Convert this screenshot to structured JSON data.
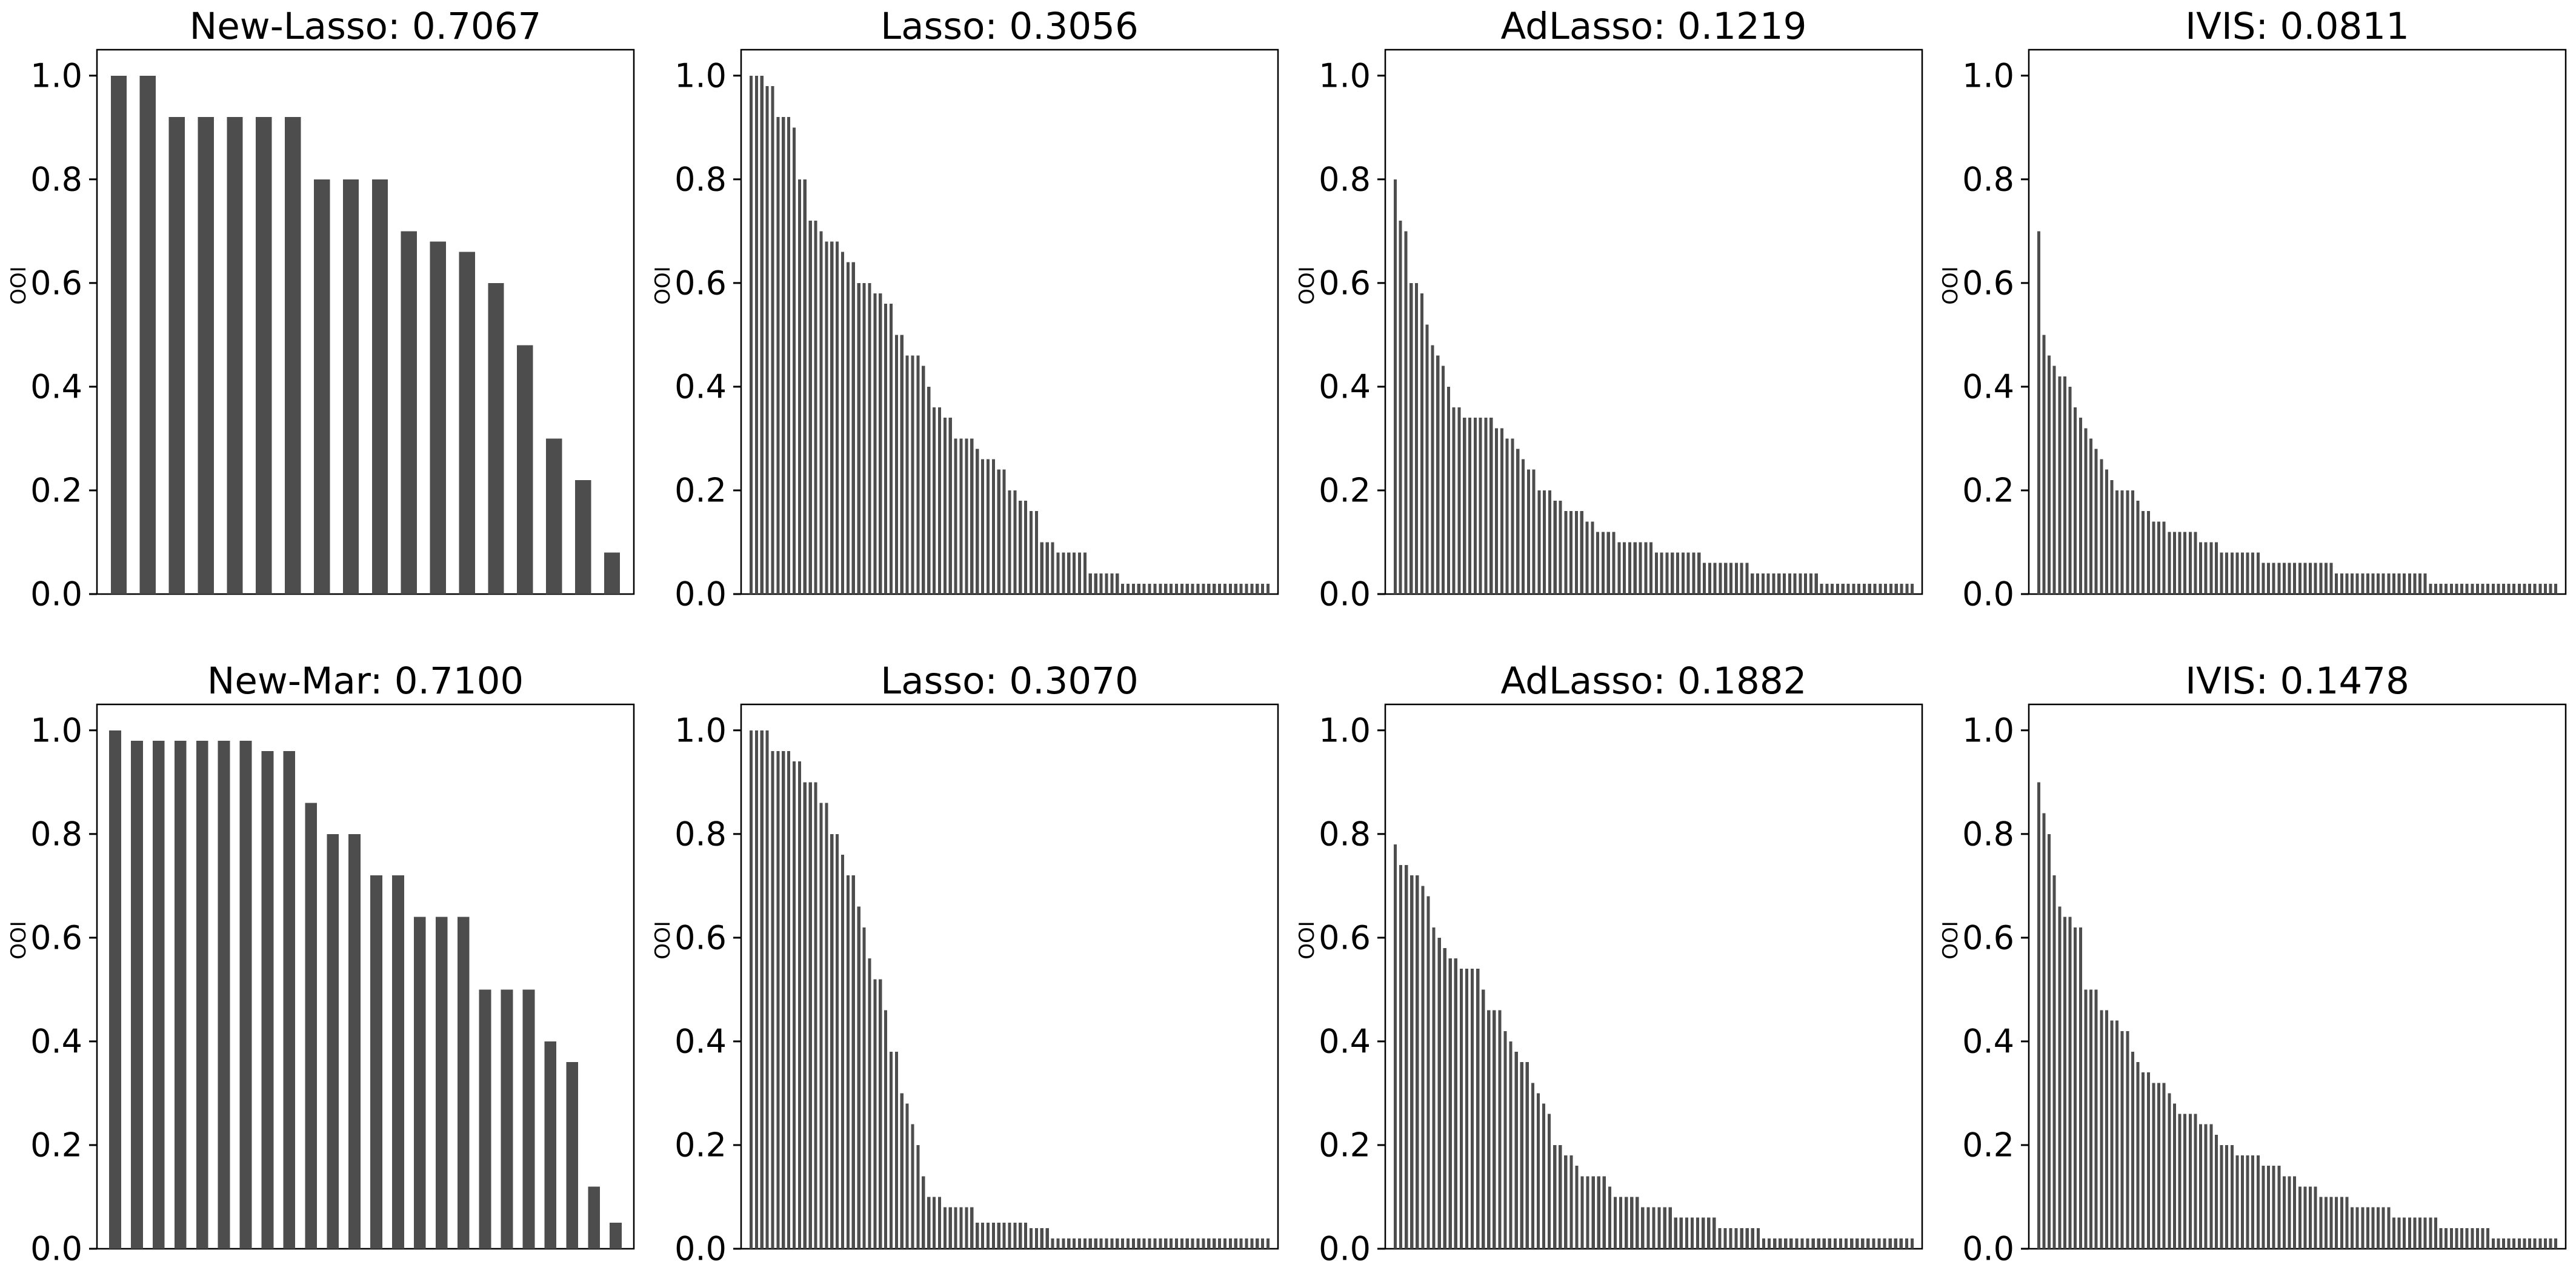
{
  "figure": {
    "background": "#ffffff",
    "bar_color": "#4d4d4d",
    "axis_color": "#000000",
    "ylabel": "OOI",
    "yticks": [
      "0.0",
      "0.2",
      "0.4",
      "0.6",
      "0.8",
      "1.0"
    ],
    "ytick_values": [
      0.0,
      0.2,
      0.4,
      0.6,
      0.8,
      1.0
    ],
    "ylim": [
      0,
      1.05
    ]
  },
  "chart_data": [
    {
      "type": "bar",
      "title": "New-Lasso: 0.7067",
      "method": "New-Lasso",
      "score": "0.7067",
      "ylabel": "OOI",
      "xlabel": "",
      "ylim": [
        0,
        1.05
      ],
      "grid": false,
      "values": [
        1.0,
        1.0,
        0.92,
        0.92,
        0.92,
        0.92,
        0.92,
        0.8,
        0.8,
        0.8,
        0.7,
        0.68,
        0.66,
        0.6,
        0.48,
        0.3,
        0.22,
        0.08
      ]
    },
    {
      "type": "bar",
      "title": "Lasso: 0.3056",
      "method": "Lasso",
      "score": "0.3056",
      "ylabel": "OOI",
      "xlabel": "",
      "ylim": [
        0,
        1.05
      ],
      "grid": false,
      "values": [
        1.0,
        1.0,
        1.0,
        0.98,
        0.98,
        0.92,
        0.92,
        0.92,
        0.9,
        0.8,
        0.8,
        0.72,
        0.72,
        0.7,
        0.68,
        0.68,
        0.68,
        0.66,
        0.64,
        0.64,
        0.6,
        0.6,
        0.6,
        0.58,
        0.58,
        0.56,
        0.56,
        0.5,
        0.5,
        0.46,
        0.46,
        0.46,
        0.44,
        0.4,
        0.36,
        0.36,
        0.34,
        0.34,
        0.3,
        0.3,
        0.3,
        0.3,
        0.28,
        0.26,
        0.26,
        0.26,
        0.24,
        0.24,
        0.2,
        0.2,
        0.18,
        0.18,
        0.16,
        0.16,
        0.1,
        0.1,
        0.1,
        0.08,
        0.08,
        0.08,
        0.08,
        0.08,
        0.08,
        0.04,
        0.04,
        0.04,
        0.04,
        0.04,
        0.04,
        0.02,
        0.02,
        0.02,
        0.02,
        0.02,
        0.02,
        0.02,
        0.02,
        0.02,
        0.02,
        0.02,
        0.02,
        0.02,
        0.02,
        0.02,
        0.02,
        0.02,
        0.02,
        0.02,
        0.02,
        0.02,
        0.02,
        0.02,
        0.02,
        0.02,
        0.02,
        0.02,
        0.02
      ]
    },
    {
      "type": "bar",
      "title": "AdLasso: 0.1219",
      "method": "AdLasso",
      "score": "0.1219",
      "ylabel": "OOI",
      "xlabel": "",
      "ylim": [
        0,
        1.05
      ],
      "grid": false,
      "values": [
        0.8,
        0.72,
        0.7,
        0.6,
        0.6,
        0.58,
        0.52,
        0.48,
        0.46,
        0.44,
        0.4,
        0.36,
        0.36,
        0.34,
        0.34,
        0.34,
        0.34,
        0.34,
        0.34,
        0.32,
        0.32,
        0.3,
        0.3,
        0.28,
        0.26,
        0.24,
        0.24,
        0.2,
        0.2,
        0.2,
        0.18,
        0.18,
        0.16,
        0.16,
        0.16,
        0.16,
        0.14,
        0.14,
        0.12,
        0.12,
        0.12,
        0.12,
        0.1,
        0.1,
        0.1,
        0.1,
        0.1,
        0.1,
        0.1,
        0.08,
        0.08,
        0.08,
        0.08,
        0.08,
        0.08,
        0.08,
        0.08,
        0.08,
        0.06,
        0.06,
        0.06,
        0.06,
        0.06,
        0.06,
        0.06,
        0.06,
        0.06,
        0.04,
        0.04,
        0.04,
        0.04,
        0.04,
        0.04,
        0.04,
        0.04,
        0.04,
        0.04,
        0.04,
        0.04,
        0.04,
        0.02,
        0.02,
        0.02,
        0.02,
        0.02,
        0.02,
        0.02,
        0.02,
        0.02,
        0.02,
        0.02,
        0.02,
        0.02,
        0.02,
        0.02,
        0.02,
        0.02,
        0.02
      ]
    },
    {
      "type": "bar",
      "title": "IVIS: 0.0811",
      "method": "IVIS",
      "score": "0.0811",
      "ylabel": "OOI",
      "xlabel": "",
      "ylim": [
        0,
        1.05
      ],
      "grid": false,
      "values": [
        0.7,
        0.5,
        0.46,
        0.44,
        0.42,
        0.42,
        0.4,
        0.36,
        0.34,
        0.32,
        0.3,
        0.28,
        0.26,
        0.24,
        0.22,
        0.2,
        0.2,
        0.2,
        0.2,
        0.18,
        0.16,
        0.16,
        0.14,
        0.14,
        0.14,
        0.12,
        0.12,
        0.12,
        0.12,
        0.12,
        0.12,
        0.1,
        0.1,
        0.1,
        0.1,
        0.08,
        0.08,
        0.08,
        0.08,
        0.08,
        0.08,
        0.08,
        0.08,
        0.06,
        0.06,
        0.06,
        0.06,
        0.06,
        0.06,
        0.06,
        0.06,
        0.06,
        0.06,
        0.06,
        0.06,
        0.06,
        0.06,
        0.04,
        0.04,
        0.04,
        0.04,
        0.04,
        0.04,
        0.04,
        0.04,
        0.04,
        0.04,
        0.04,
        0.04,
        0.04,
        0.04,
        0.04,
        0.04,
        0.04,
        0.04,
        0.02,
        0.02,
        0.02,
        0.02,
        0.02,
        0.02,
        0.02,
        0.02,
        0.02,
        0.02,
        0.02,
        0.02,
        0.02,
        0.02,
        0.02,
        0.02,
        0.02,
        0.02,
        0.02,
        0.02,
        0.02,
        0.02,
        0.02,
        0.02,
        0.02
      ]
    },
    {
      "type": "bar",
      "title": "New-Mar: 0.7100",
      "method": "New-Mar",
      "score": "0.7100",
      "ylabel": "OOI",
      "xlabel": "",
      "ylim": [
        0,
        1.05
      ],
      "grid": false,
      "values": [
        1.0,
        0.98,
        0.98,
        0.98,
        0.98,
        0.98,
        0.98,
        0.96,
        0.96,
        0.86,
        0.8,
        0.8,
        0.72,
        0.72,
        0.64,
        0.64,
        0.64,
        0.5,
        0.5,
        0.5,
        0.4,
        0.36,
        0.12,
        0.05
      ]
    },
    {
      "type": "bar",
      "title": "Lasso: 0.3070",
      "method": "Lasso",
      "score": "0.3070",
      "ylabel": "OOI",
      "xlabel": "",
      "ylim": [
        0,
        1.05
      ],
      "grid": false,
      "values": [
        1.0,
        1.0,
        1.0,
        1.0,
        0.96,
        0.96,
        0.96,
        0.96,
        0.94,
        0.94,
        0.9,
        0.9,
        0.9,
        0.86,
        0.86,
        0.8,
        0.8,
        0.76,
        0.72,
        0.72,
        0.66,
        0.62,
        0.56,
        0.52,
        0.52,
        0.46,
        0.38,
        0.38,
        0.3,
        0.28,
        0.24,
        0.2,
        0.14,
        0.1,
        0.1,
        0.1,
        0.08,
        0.08,
        0.08,
        0.08,
        0.08,
        0.08,
        0.05,
        0.05,
        0.05,
        0.05,
        0.05,
        0.05,
        0.05,
        0.05,
        0.05,
        0.05,
        0.04,
        0.04,
        0.04,
        0.04,
        0.02,
        0.02,
        0.02,
        0.02,
        0.02,
        0.02,
        0.02,
        0.02,
        0.02,
        0.02,
        0.02,
        0.02,
        0.02,
        0.02,
        0.02,
        0.02,
        0.02,
        0.02,
        0.02,
        0.02,
        0.02,
        0.02,
        0.02,
        0.02,
        0.02,
        0.02,
        0.02,
        0.02,
        0.02,
        0.02,
        0.02,
        0.02,
        0.02,
        0.02,
        0.02,
        0.02,
        0.02,
        0.02,
        0.02,
        0.02,
        0.02
      ]
    },
    {
      "type": "bar",
      "title": "AdLasso: 0.1882",
      "method": "AdLasso",
      "score": "0.1882",
      "ylabel": "OOI",
      "xlabel": "",
      "ylim": [
        0,
        1.05
      ],
      "grid": false,
      "values": [
        0.78,
        0.74,
        0.74,
        0.72,
        0.72,
        0.7,
        0.68,
        0.62,
        0.6,
        0.58,
        0.56,
        0.56,
        0.54,
        0.54,
        0.54,
        0.54,
        0.5,
        0.46,
        0.46,
        0.46,
        0.42,
        0.4,
        0.38,
        0.36,
        0.36,
        0.32,
        0.3,
        0.28,
        0.26,
        0.2,
        0.2,
        0.18,
        0.18,
        0.16,
        0.14,
        0.14,
        0.14,
        0.14,
        0.14,
        0.12,
        0.1,
        0.1,
        0.1,
        0.1,
        0.1,
        0.08,
        0.08,
        0.08,
        0.08,
        0.08,
        0.08,
        0.06,
        0.06,
        0.06,
        0.06,
        0.06,
        0.06,
        0.06,
        0.06,
        0.04,
        0.04,
        0.04,
        0.04,
        0.04,
        0.04,
        0.04,
        0.04,
        0.02,
        0.02,
        0.02,
        0.02,
        0.02,
        0.02,
        0.02,
        0.02,
        0.02,
        0.02,
        0.02,
        0.02,
        0.02,
        0.02,
        0.02,
        0.02,
        0.02,
        0.02,
        0.02,
        0.02,
        0.02,
        0.02,
        0.02,
        0.02,
        0.02,
        0.02,
        0.02,
        0.02
      ]
    },
    {
      "type": "bar",
      "title": "IVIS: 0.1478",
      "method": "IVIS",
      "score": "0.1478",
      "ylabel": "OOI",
      "xlabel": "",
      "ylim": [
        0,
        1.05
      ],
      "grid": false,
      "values": [
        0.9,
        0.84,
        0.8,
        0.72,
        0.66,
        0.64,
        0.64,
        0.62,
        0.62,
        0.5,
        0.5,
        0.5,
        0.46,
        0.46,
        0.44,
        0.44,
        0.42,
        0.42,
        0.38,
        0.36,
        0.34,
        0.34,
        0.32,
        0.32,
        0.32,
        0.3,
        0.28,
        0.26,
        0.26,
        0.26,
        0.26,
        0.24,
        0.24,
        0.24,
        0.22,
        0.2,
        0.2,
        0.2,
        0.18,
        0.18,
        0.18,
        0.18,
        0.18,
        0.16,
        0.16,
        0.16,
        0.16,
        0.14,
        0.14,
        0.14,
        0.12,
        0.12,
        0.12,
        0.12,
        0.1,
        0.1,
        0.1,
        0.1,
        0.1,
        0.1,
        0.08,
        0.08,
        0.08,
        0.08,
        0.08,
        0.08,
        0.08,
        0.08,
        0.06,
        0.06,
        0.06,
        0.06,
        0.06,
        0.06,
        0.06,
        0.06,
        0.06,
        0.04,
        0.04,
        0.04,
        0.04,
        0.04,
        0.04,
        0.04,
        0.04,
        0.04,
        0.04,
        0.02,
        0.02,
        0.02,
        0.02,
        0.02,
        0.02,
        0.02,
        0.02,
        0.02,
        0.02,
        0.02,
        0.02,
        0.02
      ]
    }
  ]
}
